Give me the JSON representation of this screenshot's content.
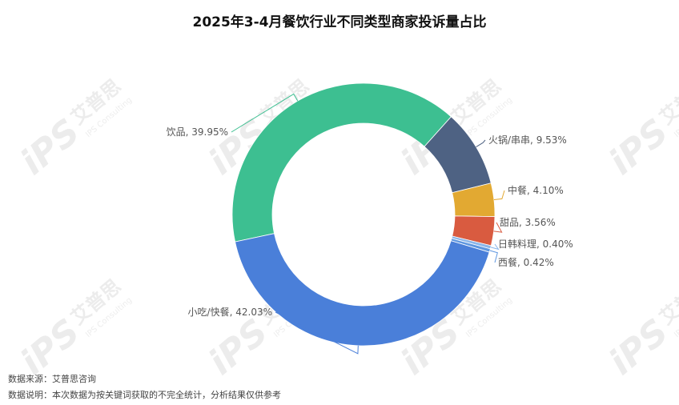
{
  "chart_data": {
    "type": "donut",
    "title": "2025年3-4月餐饮行业不同类型商家投诉量占比",
    "categories": [
      "饮品",
      "火锅/串串",
      "中餐",
      "甜品",
      "日韩料理",
      "西餐",
      "小吃/快餐"
    ],
    "values": [
      39.95,
      9.53,
      4.1,
      3.56,
      0.4,
      0.42,
      42.03
    ],
    "value_labels": [
      "39.95%",
      "9.53%",
      "4.10%",
      "3.56%",
      "0.40%",
      "0.42%",
      "42.03%"
    ],
    "colors": [
      "#3dbf91",
      "#4e6283",
      "#e2a932",
      "#d95b40",
      "#8bb6ea",
      "#5f97e0",
      "#4a7fd9"
    ],
    "watermark": {
      "logo": "iPS",
      "brand": "艾普思",
      "sub": "IPS Consulting"
    },
    "footnotes": [
      "数据来源：艾普思咨询",
      "数据说明：本次数据为按关键词获取的不完全统计，分析结果仅供参考"
    ]
  }
}
